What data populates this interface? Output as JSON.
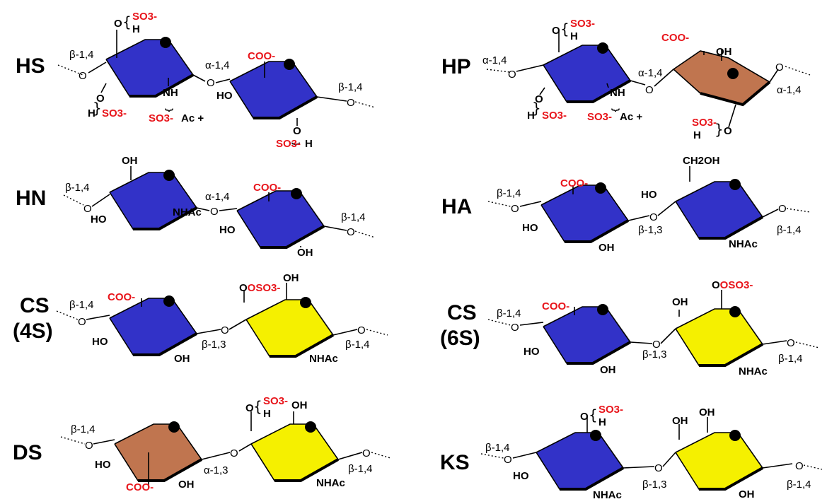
{
  "colors": {
    "glcA_glcN": "#3232c8",
    "galNAc_gal": "#f5f000",
    "idoA": "#c0754f",
    "sulfate_carboxyl_text": "#e8151b",
    "marker": "#000000"
  },
  "panels": {
    "HS": {
      "name": "HS",
      "link_left": "β-1,4",
      "link_mid": "α-1,4",
      "link_right": "β-1,4",
      "o6": "O",
      "so3_o6": "SO3-",
      "h_o6": "H",
      "o3": "O",
      "h_o3": "H",
      "so3_o3": "SO3-",
      "nh": "NH",
      "so3_n": "SO3-",
      "ac": "Ac +",
      "coo": "COO-",
      "oh": "HO",
      "o2": "O",
      "so3_o2": "SO3-",
      "h_o2": "H"
    },
    "HP": {
      "name": "HP",
      "link_left": "α-1,4",
      "link_mid": "α-1,4",
      "link_right": "α-1,4",
      "o6": "O",
      "so3_o6": "SO3-",
      "h_o6": "H",
      "o3": "O",
      "h_o3": "H",
      "so3_o3": "SO3-",
      "nh": "NH",
      "so3_n": "SO3-",
      "ac": "Ac +",
      "coo": "COO-",
      "oh": "OH",
      "so3_o2": "SO3-",
      "h_o2": "H",
      "o2": "O"
    },
    "HN": {
      "name": "HN",
      "link_left": "β-1,4",
      "link_mid": "α-1,4",
      "link_right": "β-1,4",
      "oh6": "OH",
      "ho3": "HO",
      "nhac": "NHAc",
      "coo": "COO-",
      "ho": "HO",
      "oh2": "OH"
    },
    "HA": {
      "name": "HA",
      "link_left": "β-1,4",
      "link_mid": "β-1,3",
      "link_right": "β-1,4",
      "coo": "COO-",
      "ho": "HO",
      "oh": "OH",
      "ch2oh": "CH2OH",
      "ho4": "HO",
      "nhac": "NHAc"
    },
    "CS4S": {
      "name_top": "CS",
      "name_bottom": "(4S)",
      "link_left": "β-1,4",
      "link_mid": "β-1,3",
      "link_right": "β-1,4",
      "coo": "COO-",
      "ho": "HO",
      "oh": "OH",
      "oso3": "OSO3-",
      "oh6": "OH",
      "nhac": "NHAc"
    },
    "CS6S": {
      "name_top": "CS",
      "name_bottom": "(6S)",
      "link_left": "β-1,4",
      "link_mid": "β-1,3",
      "link_right": "β-1,4",
      "coo": "COO-",
      "ho": "HO",
      "oh": "OH",
      "oh4": "OH",
      "oso3": "OSO3-",
      "nhac": "NHAc"
    },
    "DS": {
      "name": "DS",
      "link_left": "β-1,4",
      "link_mid": "α-1,3",
      "link_right": "β-1,4",
      "ho": "HO",
      "coo": "COO-",
      "oh": "OH",
      "o4": "O",
      "so3_o4": "SO3-",
      "h_o4": "H",
      "oh6": "OH",
      "nhac": "NHAc"
    },
    "KS": {
      "name": "KS",
      "link_left": "β-1,4",
      "link_mid": "β-1,3",
      "link_right": "β-1,4",
      "o6": "O",
      "so3_o6": "SO3-",
      "h_o6": "H",
      "ho": "HO",
      "nhac": "NHAc",
      "oh4": "OH",
      "oh6": "OH",
      "oh2": "OH"
    }
  }
}
